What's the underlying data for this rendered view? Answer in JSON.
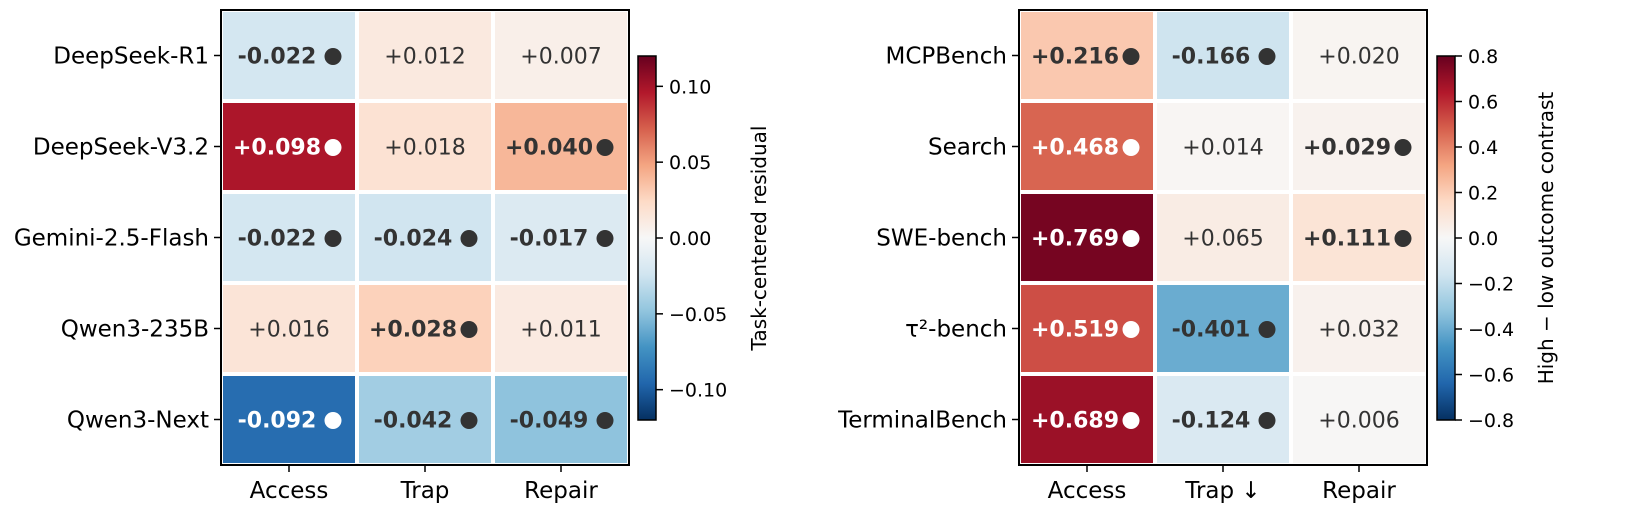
{
  "chart_data": [
    {
      "type": "heatmap",
      "rows": [
        "DeepSeek-R1",
        "DeepSeek-V3.2",
        "Gemini-2.5-Flash",
        "Qwen3-235B",
        "Qwen3-Next"
      ],
      "columns": [
        "Access",
        "Trap",
        "Repair"
      ],
      "values": [
        [
          -0.022,
          0.012,
          0.007
        ],
        [
          0.098,
          0.018,
          0.04
        ],
        [
          -0.022,
          -0.024,
          -0.017
        ],
        [
          0.016,
          0.028,
          0.011
        ],
        [
          -0.092,
          -0.042,
          -0.049
        ]
      ],
      "labels": [
        [
          "-0.022",
          "+0.012",
          "+0.007"
        ],
        [
          "+0.098",
          "+0.018",
          "+0.040"
        ],
        [
          "-0.022",
          "-0.024",
          "-0.017"
        ],
        [
          "+0.016",
          "+0.028",
          "+0.011"
        ],
        [
          "-0.092",
          "-0.042",
          "-0.049"
        ]
      ],
      "marked": [
        [
          true,
          false,
          false
        ],
        [
          true,
          false,
          true
        ],
        [
          true,
          true,
          true
        ],
        [
          false,
          true,
          false
        ],
        [
          true,
          true,
          true
        ]
      ],
      "colorbar": {
        "label": "Task-centered residual",
        "range": [
          -0.12,
          0.12
        ],
        "ticks": [
          0.1,
          0.05,
          0.0,
          -0.05,
          -0.1
        ],
        "tick_labels": [
          "0.10",
          "0.05",
          "0.00",
          "−0.05",
          "−0.10"
        ],
        "colormap": "RdBu_r"
      }
    },
    {
      "type": "heatmap",
      "rows": [
        "MCPBench",
        "Search",
        "SWE-bench",
        "τ²-bench",
        "TerminalBench"
      ],
      "columns": [
        "Access",
        "Trap ↓",
        "Repair"
      ],
      "values": [
        [
          0.216,
          -0.166,
          0.02
        ],
        [
          0.468,
          0.014,
          0.029
        ],
        [
          0.769,
          0.065,
          0.111
        ],
        [
          0.519,
          -0.401,
          0.032
        ],
        [
          0.689,
          -0.124,
          0.006
        ]
      ],
      "labels": [
        [
          "+0.216",
          "-0.166",
          "+0.020"
        ],
        [
          "+0.468",
          "+0.014",
          "+0.029"
        ],
        [
          "+0.769",
          "+0.065",
          "+0.111"
        ],
        [
          "+0.519",
          "-0.401",
          "+0.032"
        ],
        [
          "+0.689",
          "-0.124",
          "+0.006"
        ]
      ],
      "marked": [
        [
          true,
          true,
          false
        ],
        [
          true,
          false,
          true
        ],
        [
          true,
          false,
          true
        ],
        [
          true,
          true,
          false
        ],
        [
          true,
          true,
          false
        ]
      ],
      "colorbar": {
        "label": "High − low outcome contrast",
        "range": [
          -0.8,
          0.8
        ],
        "ticks": [
          0.8,
          0.6,
          0.4,
          0.2,
          0.0,
          -0.2,
          -0.4,
          -0.6,
          -0.8
        ],
        "tick_labels": [
          "0.8",
          "0.6",
          "0.4",
          "0.2",
          "0.0",
          "−0.2",
          "−0.4",
          "−0.6",
          "−0.8"
        ],
        "colormap": "RdBu_r"
      }
    }
  ]
}
